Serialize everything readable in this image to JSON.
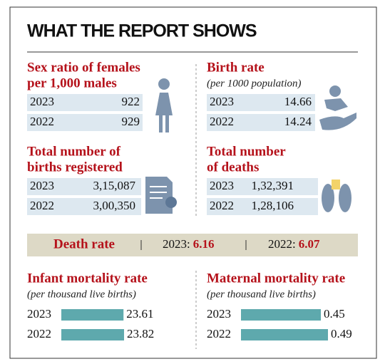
{
  "title": "WHAT THE REPORT SHOWS",
  "panels": [
    {
      "title": [
        "Sex ratio of females",
        "per 1,000 males"
      ],
      "rows": [
        {
          "year": "2023",
          "value": 922
        },
        {
          "year": "2022",
          "value": 929
        }
      ]
    },
    {
      "title": [
        "Birth rate"
      ],
      "subtitle": "(per 1000 population)",
      "rows": [
        {
          "year": "2023",
          "value": 14.66
        },
        {
          "year": "2022",
          "value": 14.24
        }
      ]
    },
    {
      "title": [
        "Total number of",
        "births registered"
      ],
      "rows": [
        {
          "year": "2023",
          "value": "3,15,087"
        },
        {
          "year": "2022",
          "value": "3,00,350"
        }
      ]
    },
    {
      "title": [
        "Total number",
        "of deaths"
      ],
      "rows": [
        {
          "year": "2023",
          "value": "1,32,391"
        },
        {
          "year": "2022",
          "value": "1,28,106"
        }
      ]
    }
  ],
  "death_rate": {
    "label": "Death rate",
    "items": [
      {
        "year": "2023:",
        "value": 6.16
      },
      {
        "year": "2022:",
        "value": 6.07
      }
    ]
  },
  "mortality": [
    {
      "title": "Infant mortality rate",
      "subtitle": "(per thousand live births)",
      "rows": [
        {
          "year": "2023",
          "value": 23.61
        },
        {
          "year": "2022",
          "value": 23.82
        }
      ]
    },
    {
      "title": "Maternal mortality rate",
      "subtitle": "(per thousand live births)",
      "rows": [
        {
          "year": "2023",
          "value": 0.45
        },
        {
          "year": "2022",
          "value": 0.49
        }
      ]
    }
  ]
}
